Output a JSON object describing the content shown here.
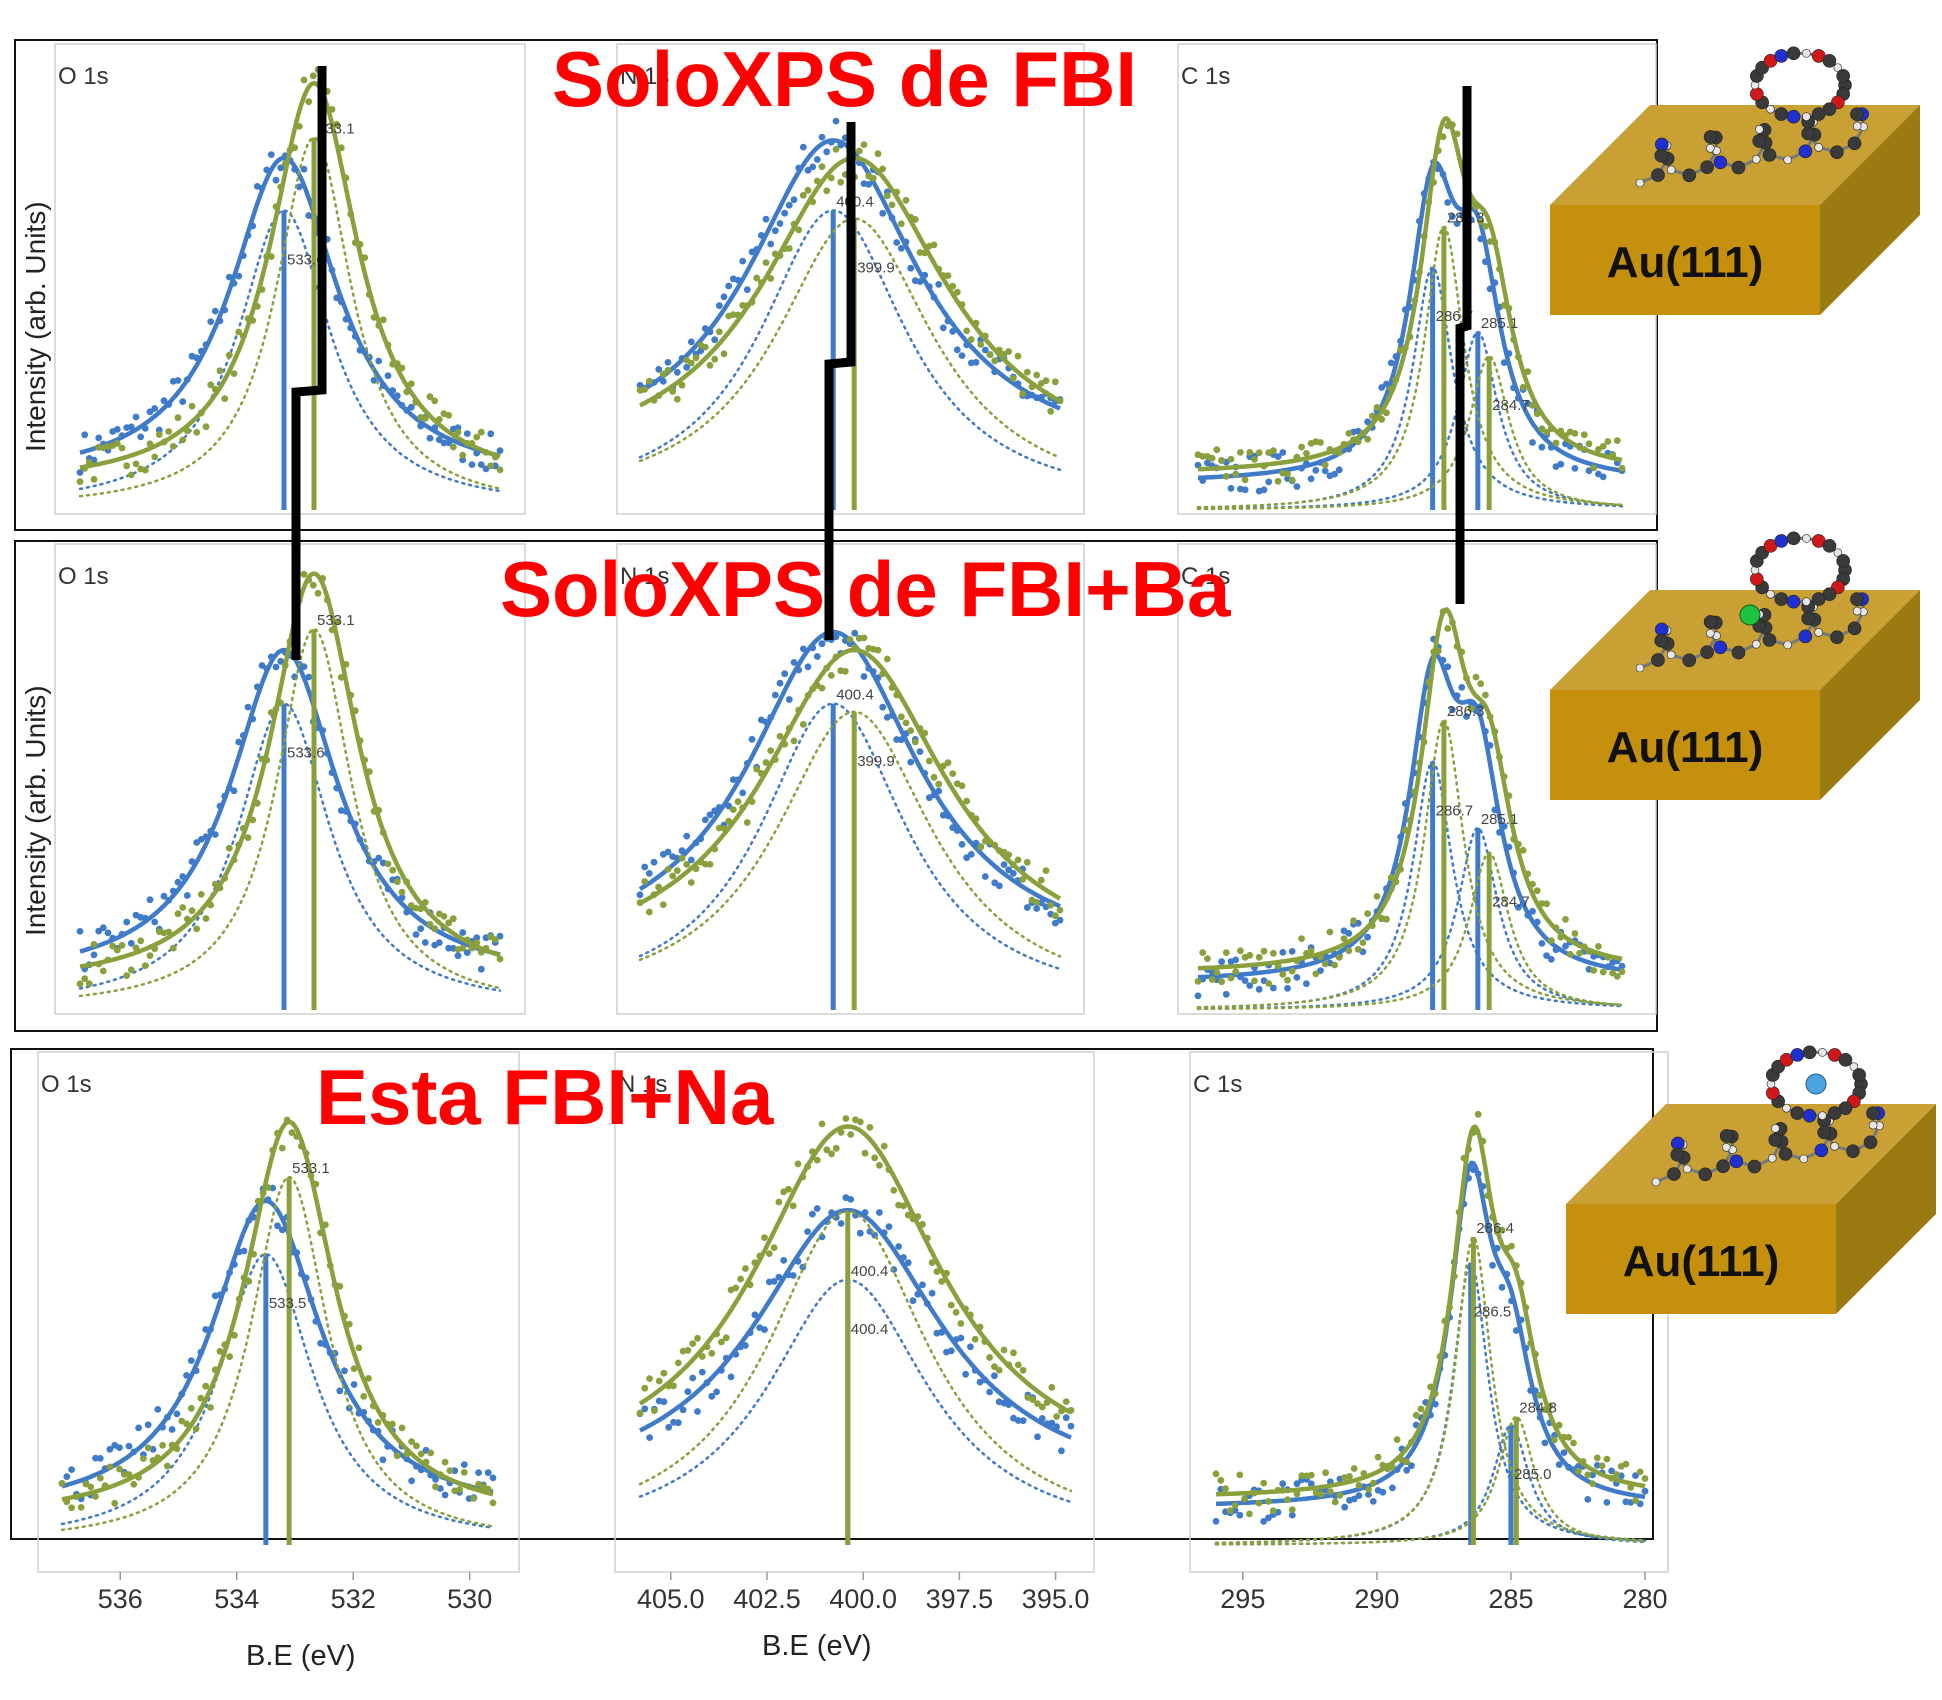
{
  "rows": [
    {
      "title": "SoloXPS de FBI",
      "substrate": "Au(111)",
      "adsorbate": "none"
    },
    {
      "title": "SoloXPS de FBI+Ba",
      "substrate": "Au(111)",
      "adsorbate": "Ba"
    },
    {
      "title": "Esta FBI+Na",
      "substrate": "Au(111)",
      "adsorbate": "Na"
    }
  ],
  "y_axis_label": "Intensity (arb. Units)",
  "x_axis_label": "B.E (eV)",
  "colors": {
    "blue": "#3f7bc8",
    "green": "#89a03c",
    "annotation": "#ff0000",
    "guide": "#000000",
    "gold": "#c9a033",
    "gold_dark": "#9c7a12"
  },
  "chart_data": [
    {
      "type": "scatter",
      "row": 1,
      "title": "O 1s",
      "xlabel": "B.E (eV)",
      "ylabel": "Intensity (arb. Units)",
      "xlim": [
        537,
        530
      ],
      "x_reversed": true,
      "series": [
        {
          "color": "#3f7bc8",
          "peaks": [
            {
              "center": 533.6,
              "amp": 0.74
            }
          ],
          "fwhm": 2.2,
          "background": 0.06
        },
        {
          "color": "#89a03c",
          "peaks": [
            {
              "center": 533.1,
              "amp": 0.92
            }
          ],
          "fwhm": 1.8,
          "background": 0.05
        }
      ],
      "peak_labels": [
        "533.1",
        "533.6"
      ]
    },
    {
      "type": "scatter",
      "row": 1,
      "title": "N 1s",
      "xlabel": "B.E (eV)",
      "ylabel": "Intensity (arb. Units)",
      "xlim": [
        405,
        395
      ],
      "x_reversed": true,
      "series": [
        {
          "color": "#3f7bc8",
          "peaks": [
            {
              "center": 400.4,
              "amp": 0.74
            }
          ],
          "fwhm": 5.0,
          "background": 0.1
        },
        {
          "color": "#89a03c",
          "peaks": [
            {
              "center": 399.9,
              "amp": 0.72
            }
          ],
          "fwhm": 5.4,
          "background": 0.08
        }
      ],
      "peak_labels": [
        "400.4",
        "399.9"
      ]
    },
    {
      "type": "scatter",
      "row": 1,
      "title": "C 1s",
      "xlabel": "B.E (eV)",
      "ylabel": "Intensity (arb. Units)",
      "xlim": [
        295,
        280
      ],
      "x_reversed": true,
      "series": [
        {
          "color": "#3f7bc8",
          "peaks": [
            {
              "center": 286.7,
              "amp": 0.6
            },
            {
              "center": 285.1,
              "amp": 0.44
            }
          ],
          "fwhm": 2.0,
          "background": 0.06
        },
        {
          "color": "#89a03c",
          "peaks": [
            {
              "center": 286.3,
              "amp": 0.7
            },
            {
              "center": 284.7,
              "amp": 0.38
            }
          ],
          "fwhm": 2.0,
          "background": 0.08
        }
      ],
      "peak_labels": [
        "286.3",
        "286.7",
        "285.1",
        "284.7"
      ]
    },
    {
      "type": "scatter",
      "row": 2,
      "title": "O 1s",
      "xlabel": "B.E (eV)",
      "ylabel": "Intensity (arb. Units)",
      "xlim": [
        537,
        530
      ],
      "x_reversed": true,
      "series": [
        {
          "color": "#3f7bc8",
          "peaks": [
            {
              "center": 533.6,
              "amp": 0.74
            }
          ],
          "fwhm": 2.2,
          "background": 0.06
        },
        {
          "color": "#89a03c",
          "peaks": [
            {
              "center": 533.1,
              "amp": 0.92
            }
          ],
          "fwhm": 1.8,
          "background": 0.05
        }
      ],
      "peak_labels": [
        "533.1",
        "533.6"
      ]
    },
    {
      "type": "scatter",
      "row": 2,
      "title": "N 1s",
      "xlabel": "B.E (eV)",
      "ylabel": "Intensity (arb. Units)",
      "xlim": [
        405,
        395
      ],
      "x_reversed": true,
      "series": [
        {
          "color": "#3f7bc8",
          "peaks": [
            {
              "center": 400.4,
              "amp": 0.74
            }
          ],
          "fwhm": 5.0,
          "background": 0.1
        },
        {
          "color": "#89a03c",
          "peaks": [
            {
              "center": 399.9,
              "amp": 0.72
            }
          ],
          "fwhm": 5.4,
          "background": 0.08
        }
      ],
      "peak_labels": [
        "400.4",
        "399.9"
      ]
    },
    {
      "type": "scatter",
      "row": 2,
      "title": "C 1s",
      "xlabel": "B.E (eV)",
      "ylabel": "Intensity (arb. Units)",
      "xlim": [
        295,
        280
      ],
      "x_reversed": true,
      "series": [
        {
          "color": "#3f7bc8",
          "peaks": [
            {
              "center": 286.7,
              "amp": 0.6
            },
            {
              "center": 285.1,
              "amp": 0.44
            }
          ],
          "fwhm": 2.0,
          "background": 0.06
        },
        {
          "color": "#89a03c",
          "peaks": [
            {
              "center": 286.3,
              "amp": 0.7
            },
            {
              "center": 284.7,
              "amp": 0.38
            }
          ],
          "fwhm": 2.0,
          "background": 0.08
        }
      ],
      "peak_labels": [
        "286.3",
        "286.7",
        "285.1",
        "284.7"
      ]
    },
    {
      "type": "scatter",
      "row": 3,
      "title": "O 1s",
      "xlabel": "B.E (eV)",
      "ylabel": "",
      "xlim": [
        537,
        530
      ],
      "x_reversed": true,
      "xticks": [
        536,
        534,
        532,
        530
      ],
      "xtick_labels": [
        "536",
        "534",
        "532",
        "530"
      ],
      "series": [
        {
          "color": "#3f7bc8",
          "peaks": [
            {
              "center": 533.5,
              "amp": 0.68
            }
          ],
          "fwhm": 2.3,
          "background": 0.06
        },
        {
          "color": "#89a03c",
          "peaks": [
            {
              "center": 533.1,
              "amp": 0.86
            }
          ],
          "fwhm": 1.9,
          "background": 0.05
        }
      ],
      "peak_labels": [
        "533.1",
        "533.5"
      ]
    },
    {
      "type": "scatter",
      "row": 3,
      "title": "N 1s",
      "xlabel": "B.E (eV)",
      "ylabel": "",
      "xlim": [
        405,
        395
      ],
      "x_reversed": true,
      "xticks": [
        405,
        402.5,
        400,
        397.5,
        395
      ],
      "xtick_labels": [
        "405.0",
        "402.5",
        "400.0",
        "397.5",
        "395.0"
      ],
      "series": [
        {
          "color": "#3f7bc8",
          "peaks": [
            {
              "center": 400.4,
              "amp": 0.62
            }
          ],
          "fwhm": 6.0,
          "background": 0.1
        },
        {
          "color": "#89a03c",
          "peaks": [
            {
              "center": 400.4,
              "amp": 0.78
            }
          ],
          "fwhm": 6.0,
          "background": 0.12
        }
      ],
      "peak_labels": [
        "400.4",
        "400.4"
      ]
    },
    {
      "type": "scatter",
      "row": 3,
      "title": "C 1s",
      "xlabel": "",
      "ylabel": "",
      "xlim": [
        295,
        280
      ],
      "x_reversed": true,
      "xticks": [
        295,
        290,
        285,
        280
      ],
      "xtick_labels": [
        "295",
        "290",
        "285",
        "280"
      ],
      "series": [
        {
          "color": "#3f7bc8",
          "peaks": [
            {
              "center": 286.5,
              "amp": 0.66
            },
            {
              "center": 285.0,
              "amp": 0.28
            }
          ],
          "fwhm": 1.9,
          "background": 0.08
        },
        {
          "color": "#89a03c",
          "peaks": [
            {
              "center": 286.4,
              "amp": 0.72
            },
            {
              "center": 284.8,
              "amp": 0.3
            }
          ],
          "fwhm": 1.9,
          "background": 0.1
        }
      ],
      "peak_labels": [
        "286.4",
        "286.5",
        "284.8",
        "285.0"
      ]
    }
  ]
}
